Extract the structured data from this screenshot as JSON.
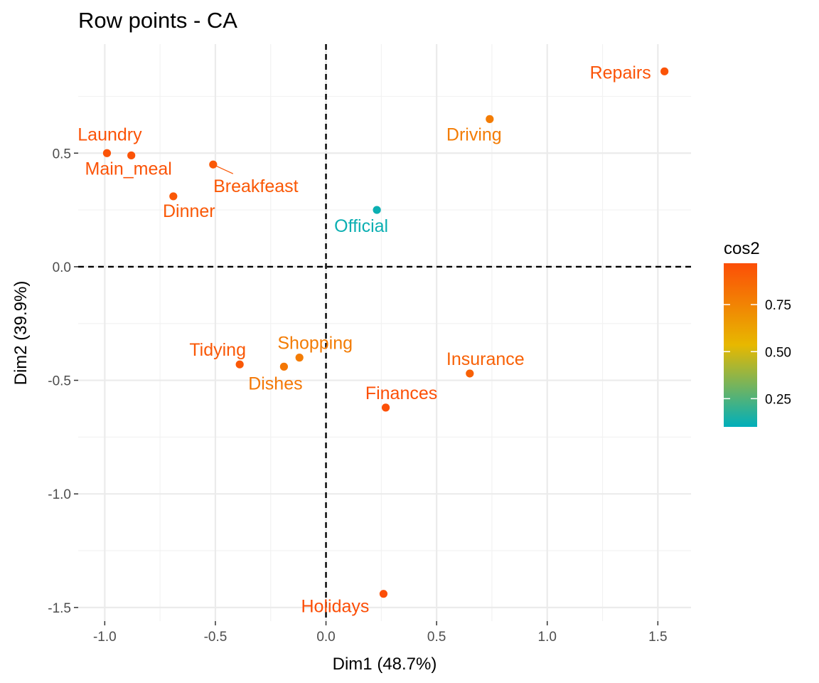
{
  "chart_data": {
    "type": "scatter",
    "title": "Row points - CA",
    "xlabel": "Dim1 (48.7%)",
    "ylabel": "Dim2 (39.9%)",
    "xlim": [
      -1.12,
      1.65
    ],
    "ylim": [
      -1.56,
      0.98
    ],
    "x_ticks": [
      -1.0,
      -0.5,
      0.0,
      0.5,
      1.0,
      1.5
    ],
    "x_tick_labels": [
      "-1.0",
      "-0.5",
      "0.0",
      "0.5",
      "1.0",
      "1.5"
    ],
    "y_ticks": [
      0.5,
      0.0,
      -0.5,
      -1.0,
      -1.5
    ],
    "y_tick_labels": [
      "0.5",
      "0.0",
      "-0.5",
      "-1.0",
      "-1.5"
    ],
    "grid": true,
    "reference_lines": {
      "x": 0,
      "y": 0,
      "style": "dashed"
    },
    "color_by": "cos2",
    "legend": {
      "title": "cos2",
      "placement": "right",
      "range": [
        0.1,
        0.97
      ],
      "ticks": [
        0.75,
        0.5,
        0.25
      ],
      "tick_labels": [
        "0.75",
        "0.50",
        "0.25"
      ],
      "colors": [
        "#00AFBB",
        "#E7B800",
        "#FC4E07"
      ]
    },
    "points": [
      {
        "label": "Laundry",
        "x": -0.99,
        "y": 0.5,
        "cos2": 0.95
      },
      {
        "label": "Main_meal",
        "x": -0.88,
        "y": 0.49,
        "cos2": 0.95
      },
      {
        "label": "Dinner",
        "x": -0.69,
        "y": 0.31,
        "cos2": 0.93
      },
      {
        "label": "Breakfeast",
        "x": -0.51,
        "y": 0.45,
        "cos2": 0.93
      },
      {
        "label": "Tidying",
        "x": -0.39,
        "y": -0.43,
        "cos2": 0.93
      },
      {
        "label": "Dishes",
        "x": -0.19,
        "y": -0.44,
        "cos2": 0.8
      },
      {
        "label": "Shopping",
        "x": -0.12,
        "y": -0.4,
        "cos2": 0.78
      },
      {
        "label": "Official",
        "x": 0.23,
        "y": 0.25,
        "cos2": 0.12
      },
      {
        "label": "Driving",
        "x": 0.74,
        "y": 0.65,
        "cos2": 0.78
      },
      {
        "label": "Finances",
        "x": 0.27,
        "y": -0.62,
        "cos2": 0.96
      },
      {
        "label": "Insurance",
        "x": 0.65,
        "y": -0.47,
        "cos2": 0.89
      },
      {
        "label": "Repairs",
        "x": 1.53,
        "y": 0.86,
        "cos2": 0.95
      },
      {
        "label": "Holidays",
        "x": 0.26,
        "y": -1.44,
        "cos2": 0.97
      }
    ]
  }
}
